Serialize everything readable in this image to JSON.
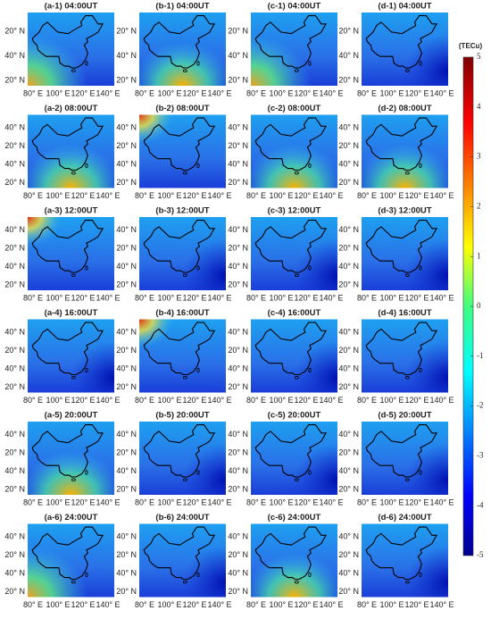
{
  "panels": [
    {
      "title": "(a-1) 04:00UT"
    },
    {
      "title": "(b-1) 04:00UT"
    },
    {
      "title": "(c-1) 04:00UT"
    },
    {
      "title": "(d-1) 04:00UT"
    },
    {
      "title": "(a-2) 08:00UT"
    },
    {
      "title": "(b-2) 08:00UT"
    },
    {
      "title": "(c-2) 08:00UT"
    },
    {
      "title": "(d-2) 08:00UT"
    },
    {
      "title": "(a-3) 12:00UT"
    },
    {
      "title": "(b-3) 12:00UT"
    },
    {
      "title": "(c-3) 12:00UT"
    },
    {
      "title": "(d-3) 12:00UT"
    },
    {
      "title": "(a-4) 16:00UT"
    },
    {
      "title": "(b-4) 16:00UT"
    },
    {
      "title": "(c-4) 16:00UT"
    },
    {
      "title": "(d-4) 16:00UT"
    },
    {
      "title": "(a-5) 20:00UT"
    },
    {
      "title": "(b-5) 20:00UT"
    },
    {
      "title": "(c-5) 20:00UT"
    },
    {
      "title": "(d-5) 20:00UT"
    },
    {
      "title": "(a-6) 24:00UT"
    },
    {
      "title": "(b-6) 24:00UT"
    },
    {
      "title": "(c-6) 24:00UT"
    },
    {
      "title": "(d-6) 24:00UT"
    }
  ],
  "row_y_labels": [
    [
      "20° N",
      "40° N",
      "20° N"
    ],
    [
      "40° N",
      "20° N",
      "40° N",
      "20° N"
    ],
    [
      "40° N",
      "20° N",
      "40° N",
      "20° N"
    ],
    [
      "40° N",
      "20° N",
      "40° N",
      "20° N"
    ],
    [
      "40° N",
      "20° N",
      "40° N",
      "20° N"
    ],
    [
      "40° N",
      "20° N",
      "40° N",
      "20° N"
    ]
  ],
  "x_labels": [
    "80° E",
    "100° E",
    "120° E",
    "140° E"
  ],
  "colorbar": {
    "unit": "(TECu)",
    "ticks": [
      5,
      4,
      3,
      2,
      1,
      0,
      -1,
      -2,
      -3,
      -4,
      -5
    ]
  }
}
